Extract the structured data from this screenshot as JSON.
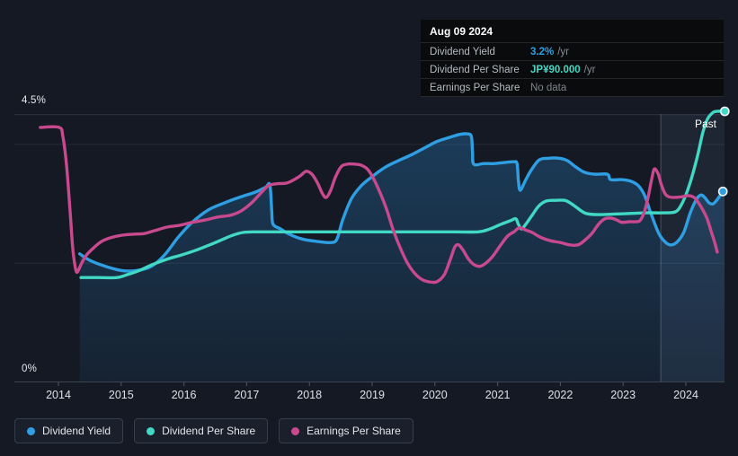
{
  "tooltip": {
    "date": "Aug 09 2024",
    "rows": [
      {
        "label": "Dividend Yield",
        "value": "3.2%",
        "suffix": "/yr",
        "color": "#2f9fe4"
      },
      {
        "label": "Dividend Per Share",
        "value": "JP¥90.000",
        "suffix": "/yr",
        "color": "#41d8c4"
      },
      {
        "label": "Earnings Per Share",
        "value": "No data",
        "suffix": "",
        "color": "#7e858c"
      }
    ]
  },
  "legend": {
    "items": [
      {
        "label": "Dividend Yield",
        "color": "#2f9fe4"
      },
      {
        "label": "Dividend Per Share",
        "color": "#41d8c4"
      },
      {
        "label": "Earnings Per Share",
        "color": "#c9498f"
      }
    ]
  },
  "chart_data": {
    "type": "line",
    "past_label": "Past",
    "past_band_start_year": 2023.6,
    "y_axis": {
      "min": 0,
      "max": 4.5,
      "max_label": "4.5%",
      "min_label": "0%",
      "gridline_values": [
        2,
        4
      ],
      "units": "percent (dividend yield axis)"
    },
    "x_axis": {
      "ticks": [
        2014,
        2015,
        2016,
        2017,
        2018,
        2019,
        2020,
        2021,
        2022,
        2023,
        2024
      ]
    },
    "series": [
      {
        "name": "Dividend Yield",
        "color": "#2f9fe4",
        "unit": "%",
        "end_dot": true,
        "area_fill": true,
        "final_value": "3.2% /yr",
        "points": [
          [
            2014.34,
            2.15
          ],
          [
            2014.5,
            2.04
          ],
          [
            2014.72,
            1.95
          ],
          [
            2015.0,
            1.87
          ],
          [
            2015.25,
            1.87
          ],
          [
            2015.48,
            1.94
          ],
          [
            2015.69,
            2.13
          ],
          [
            2015.91,
            2.43
          ],
          [
            2016.13,
            2.68
          ],
          [
            2016.39,
            2.89
          ],
          [
            2016.65,
            3.01
          ],
          [
            2016.91,
            3.11
          ],
          [
            2017.14,
            3.19
          ],
          [
            2017.3,
            3.27
          ],
          [
            2017.37,
            3.31
          ],
          [
            2017.4,
            2.87
          ],
          [
            2017.42,
            2.65
          ],
          [
            2017.54,
            2.57
          ],
          [
            2017.68,
            2.48
          ],
          [
            2017.88,
            2.4
          ],
          [
            2018.11,
            2.36
          ],
          [
            2018.34,
            2.34
          ],
          [
            2018.44,
            2.4
          ],
          [
            2018.53,
            2.72
          ],
          [
            2018.67,
            3.08
          ],
          [
            2018.83,
            3.3
          ],
          [
            2019.0,
            3.45
          ],
          [
            2019.21,
            3.61
          ],
          [
            2019.42,
            3.72
          ],
          [
            2019.63,
            3.82
          ],
          [
            2019.83,
            3.93
          ],
          [
            2020.03,
            4.04
          ],
          [
            2020.23,
            4.11
          ],
          [
            2020.39,
            4.16
          ],
          [
            2020.5,
            4.17
          ],
          [
            2020.58,
            4.13
          ],
          [
            2020.6,
            3.86
          ],
          [
            2020.62,
            3.66
          ],
          [
            2020.78,
            3.67
          ],
          [
            2020.95,
            3.67
          ],
          [
            2021.12,
            3.69
          ],
          [
            2021.26,
            3.7
          ],
          [
            2021.31,
            3.67
          ],
          [
            2021.33,
            3.4
          ],
          [
            2021.36,
            3.22
          ],
          [
            2021.45,
            3.4
          ],
          [
            2021.53,
            3.55
          ],
          [
            2021.66,
            3.73
          ],
          [
            2021.81,
            3.76
          ],
          [
            2021.98,
            3.76
          ],
          [
            2022.11,
            3.72
          ],
          [
            2022.25,
            3.61
          ],
          [
            2022.39,
            3.52
          ],
          [
            2022.55,
            3.49
          ],
          [
            2022.75,
            3.49
          ],
          [
            2022.8,
            3.4
          ],
          [
            2022.98,
            3.4
          ],
          [
            2023.13,
            3.37
          ],
          [
            2023.24,
            3.3
          ],
          [
            2023.34,
            3.14
          ],
          [
            2023.44,
            2.84
          ],
          [
            2023.57,
            2.49
          ],
          [
            2023.68,
            2.34
          ],
          [
            2023.77,
            2.3
          ],
          [
            2023.87,
            2.36
          ],
          [
            2023.97,
            2.52
          ],
          [
            2024.07,
            2.84
          ],
          [
            2024.17,
            3.07
          ],
          [
            2024.24,
            3.14
          ],
          [
            2024.3,
            3.1
          ],
          [
            2024.37,
            3.01
          ],
          [
            2024.43,
            2.99
          ],
          [
            2024.49,
            3.05
          ],
          [
            2024.59,
            3.2
          ]
        ]
      },
      {
        "name": "Dividend Per Share",
        "color": "#41d8c4",
        "unit": "axis-relative (independent JP¥ scale, ends at JP¥90.000 /yr)",
        "end_dot": true,
        "area_fill": false,
        "final_value": "JP¥90.000 /yr",
        "points": [
          [
            2014.36,
            1.75
          ],
          [
            2014.64,
            1.75
          ],
          [
            2014.93,
            1.75
          ],
          [
            2015.1,
            1.8
          ],
          [
            2015.29,
            1.87
          ],
          [
            2015.5,
            1.97
          ],
          [
            2015.73,
            2.06
          ],
          [
            2015.96,
            2.13
          ],
          [
            2016.19,
            2.21
          ],
          [
            2016.41,
            2.3
          ],
          [
            2016.61,
            2.39
          ],
          [
            2016.77,
            2.46
          ],
          [
            2016.94,
            2.51
          ],
          [
            2017.15,
            2.52
          ],
          [
            2017.65,
            2.52
          ],
          [
            2018.51,
            2.52
          ],
          [
            2019.37,
            2.52
          ],
          [
            2020.23,
            2.52
          ],
          [
            2020.69,
            2.52
          ],
          [
            2020.88,
            2.57
          ],
          [
            2021.06,
            2.65
          ],
          [
            2021.21,
            2.71
          ],
          [
            2021.29,
            2.74
          ],
          [
            2021.33,
            2.65
          ],
          [
            2021.38,
            2.57
          ],
          [
            2021.45,
            2.65
          ],
          [
            2021.55,
            2.8
          ],
          [
            2021.66,
            2.96
          ],
          [
            2021.78,
            3.04
          ],
          [
            2021.92,
            3.05
          ],
          [
            2022.07,
            3.05
          ],
          [
            2022.18,
            2.99
          ],
          [
            2022.31,
            2.89
          ],
          [
            2022.41,
            2.83
          ],
          [
            2022.6,
            2.81
          ],
          [
            2023.1,
            2.83
          ],
          [
            2023.38,
            2.84
          ],
          [
            2023.67,
            2.84
          ],
          [
            2023.84,
            2.86
          ],
          [
            2023.93,
            2.98
          ],
          [
            2024.01,
            3.17
          ],
          [
            2024.1,
            3.46
          ],
          [
            2024.19,
            3.82
          ],
          [
            2024.27,
            4.19
          ],
          [
            2024.34,
            4.41
          ],
          [
            2024.42,
            4.52
          ],
          [
            2024.49,
            4.55
          ],
          [
            2024.62,
            4.55
          ]
        ]
      },
      {
        "name": "Earnings Per Share",
        "color": "#c9498f",
        "unit": "axis-relative (independent scale, No data at end)",
        "end_dot": false,
        "area_fill": false,
        "final_value": "No data",
        "points": [
          [
            2013.71,
            4.28
          ],
          [
            2014.01,
            4.28
          ],
          [
            2014.07,
            4.13
          ],
          [
            2014.13,
            3.63
          ],
          [
            2014.19,
            2.8
          ],
          [
            2014.23,
            2.22
          ],
          [
            2014.27,
            1.92
          ],
          [
            2014.3,
            1.84
          ],
          [
            2014.36,
            1.97
          ],
          [
            2014.44,
            2.12
          ],
          [
            2014.56,
            2.25
          ],
          [
            2014.69,
            2.36
          ],
          [
            2014.83,
            2.42
          ],
          [
            2014.99,
            2.46
          ],
          [
            2015.19,
            2.48
          ],
          [
            2015.36,
            2.49
          ],
          [
            2015.53,
            2.54
          ],
          [
            2015.73,
            2.6
          ],
          [
            2015.93,
            2.63
          ],
          [
            2016.13,
            2.68
          ],
          [
            2016.34,
            2.72
          ],
          [
            2016.54,
            2.77
          ],
          [
            2016.74,
            2.8
          ],
          [
            2016.91,
            2.87
          ],
          [
            2017.08,
            3.01
          ],
          [
            2017.24,
            3.19
          ],
          [
            2017.35,
            3.3
          ],
          [
            2017.48,
            3.33
          ],
          [
            2017.63,
            3.34
          ],
          [
            2017.74,
            3.39
          ],
          [
            2017.85,
            3.46
          ],
          [
            2017.95,
            3.54
          ],
          [
            2018.04,
            3.49
          ],
          [
            2018.13,
            3.34
          ],
          [
            2018.21,
            3.16
          ],
          [
            2018.27,
            3.1
          ],
          [
            2018.34,
            3.22
          ],
          [
            2018.41,
            3.43
          ],
          [
            2018.5,
            3.61
          ],
          [
            2018.6,
            3.66
          ],
          [
            2018.73,
            3.66
          ],
          [
            2018.83,
            3.64
          ],
          [
            2018.93,
            3.57
          ],
          [
            2019.03,
            3.4
          ],
          [
            2019.13,
            3.17
          ],
          [
            2019.23,
            2.9
          ],
          [
            2019.34,
            2.54
          ],
          [
            2019.46,
            2.22
          ],
          [
            2019.56,
            2.0
          ],
          [
            2019.67,
            1.83
          ],
          [
            2019.79,
            1.72
          ],
          [
            2019.9,
            1.68
          ],
          [
            2020.03,
            1.68
          ],
          [
            2020.15,
            1.8
          ],
          [
            2020.25,
            2.07
          ],
          [
            2020.32,
            2.27
          ],
          [
            2020.38,
            2.3
          ],
          [
            2020.45,
            2.21
          ],
          [
            2020.53,
            2.07
          ],
          [
            2020.62,
            1.97
          ],
          [
            2020.72,
            1.94
          ],
          [
            2020.82,
            2.0
          ],
          [
            2020.93,
            2.12
          ],
          [
            2021.05,
            2.3
          ],
          [
            2021.16,
            2.45
          ],
          [
            2021.26,
            2.52
          ],
          [
            2021.35,
            2.59
          ],
          [
            2021.45,
            2.55
          ],
          [
            2021.55,
            2.51
          ],
          [
            2021.68,
            2.43
          ],
          [
            2021.84,
            2.37
          ],
          [
            2022.0,
            2.34
          ],
          [
            2022.15,
            2.3
          ],
          [
            2022.28,
            2.3
          ],
          [
            2022.38,
            2.37
          ],
          [
            2022.5,
            2.49
          ],
          [
            2022.61,
            2.65
          ],
          [
            2022.71,
            2.74
          ],
          [
            2022.81,
            2.75
          ],
          [
            2022.9,
            2.72
          ],
          [
            2022.98,
            2.68
          ],
          [
            2023.1,
            2.69
          ],
          [
            2023.2,
            2.69
          ],
          [
            2023.27,
            2.71
          ],
          [
            2023.34,
            2.86
          ],
          [
            2023.4,
            3.11
          ],
          [
            2023.46,
            3.43
          ],
          [
            2023.5,
            3.58
          ],
          [
            2023.56,
            3.49
          ],
          [
            2023.61,
            3.31
          ],
          [
            2023.67,
            3.16
          ],
          [
            2023.73,
            3.11
          ],
          [
            2023.81,
            3.1
          ],
          [
            2023.93,
            3.11
          ],
          [
            2024.04,
            3.13
          ],
          [
            2024.13,
            3.1
          ],
          [
            2024.2,
            3.01
          ],
          [
            2024.27,
            2.89
          ],
          [
            2024.34,
            2.74
          ],
          [
            2024.4,
            2.54
          ],
          [
            2024.46,
            2.34
          ],
          [
            2024.5,
            2.18
          ]
        ]
      }
    ],
    "colors": {
      "grid_faint": "#232b36",
      "grid_boundary": "#2d3543",
      "axis_line": "#3c4550",
      "tick": "#4e5761",
      "tick_label": "#dce1e7",
      "past_band": "rgba(151,197,255,0.08)",
      "past_line": "rgba(190,212,238,0.28)"
    }
  }
}
